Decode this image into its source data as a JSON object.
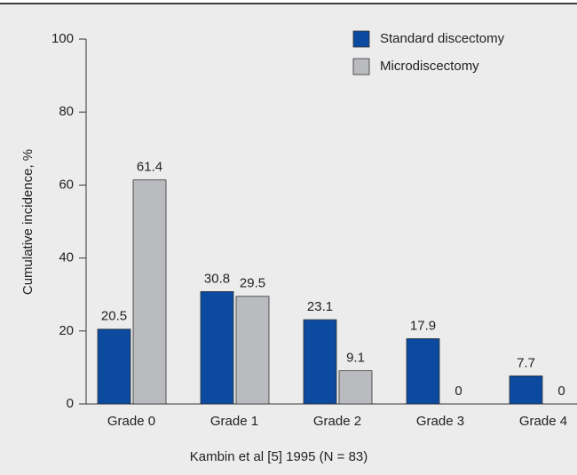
{
  "chart_data": {
    "type": "bar",
    "categories": [
      "Grade 0",
      "Grade 1",
      "Grade 2",
      "Grade 3",
      "Grade 4"
    ],
    "series": [
      {
        "name": "Standard discectomy",
        "color": "#0b4a9f",
        "values": [
          20.5,
          30.8,
          23.1,
          17.9,
          7.7
        ]
      },
      {
        "name": "Microdiscectomy",
        "color": "#b9bbbe",
        "values": [
          61.4,
          29.5,
          9.1,
          0,
          0
        ]
      }
    ],
    "ylim": [
      0,
      100
    ],
    "yticks": [
      0,
      20,
      40,
      60,
      80,
      100
    ],
    "ylabel": "Cumulative incidence, %",
    "xlabel": "Kambin et al [5] 1995 (N = 83)",
    "legend": "top-right"
  }
}
